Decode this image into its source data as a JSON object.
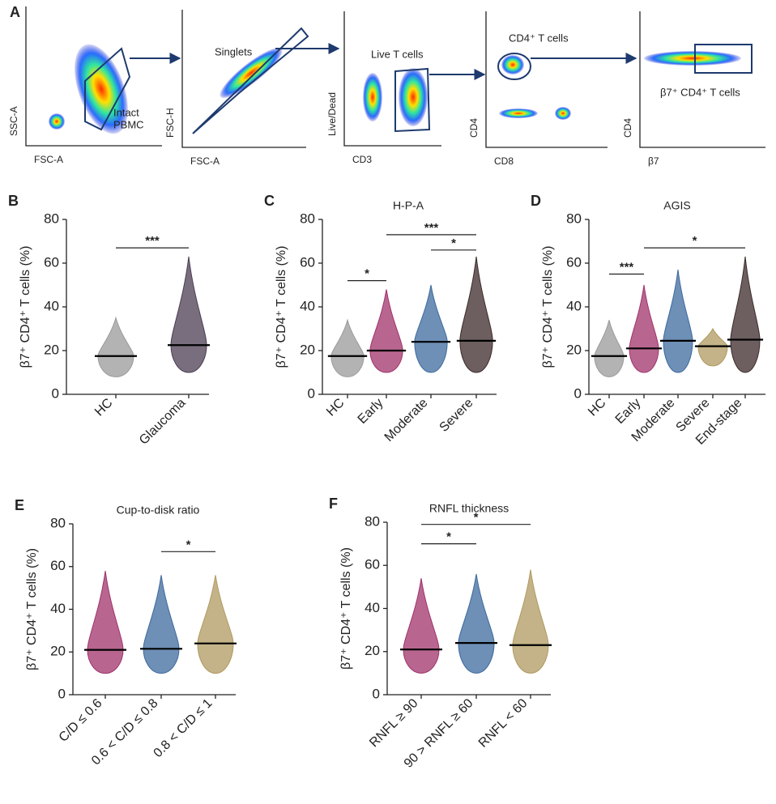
{
  "panel_a": {
    "label": "A",
    "plots": [
      {
        "y_label": "SSC-A",
        "x_label": "FSC-A",
        "gate_label": [
          "Intact",
          "PBMC"
        ]
      },
      {
        "y_label": "FSC-H",
        "x_label": "FSC-A",
        "gate_label": [
          "Singlets"
        ]
      },
      {
        "y_label": "Live/Dead",
        "x_label": "CD3",
        "gate_label": [
          "Live T cells"
        ]
      },
      {
        "y_label": "CD4",
        "x_label": "CD8",
        "gate_label": [
          "CD4⁺ T cells"
        ]
      },
      {
        "y_label": "CD4",
        "x_label": "β7",
        "gate_label": [
          "β7⁺ CD4⁺ T cells"
        ]
      }
    ]
  },
  "chart_data": [
    {
      "type": "dot",
      "panel": "B",
      "ylabel": "β7⁺ CD4⁺ T cells (%)",
      "categories": [
        "HC",
        "Glaucoma"
      ],
      "colors": [
        "#9a9a9a",
        "#4b3d52"
      ],
      "medians": [
        17.5,
        22.5
      ],
      "min": [
        8,
        10
      ],
      "max": [
        35,
        63
      ],
      "ylim": [
        0,
        80
      ],
      "yticks": [
        0,
        20,
        40,
        60,
        80
      ],
      "significance": [
        {
          "text": "***",
          "from": 0,
          "to": 1,
          "level": 67
        }
      ]
    },
    {
      "type": "dot",
      "panel": "C",
      "title": "H-P-A",
      "ylabel": "β7⁺ CD4⁺ T cells (%)",
      "categories": [
        "HC",
        "Early",
        "Moderate",
        "Severe"
      ],
      "colors": [
        "#9a9a9a",
        "#a0336b",
        "#3d6a9e",
        "#3c2a2a"
      ],
      "medians": [
        17.5,
        20,
        24,
        24.5
      ],
      "min": [
        8,
        10,
        10,
        10
      ],
      "max": [
        34,
        48,
        50,
        63
      ],
      "ylim": [
        0,
        80
      ],
      "yticks": [
        0,
        20,
        40,
        60,
        80
      ],
      "significance": [
        {
          "text": "*",
          "from": 0,
          "to": 1,
          "level": 52
        },
        {
          "text": "***",
          "from": 1,
          "to": 3,
          "level": 73
        },
        {
          "text": "*",
          "from": 2,
          "to": 3,
          "level": 66
        }
      ]
    },
    {
      "type": "dot",
      "panel": "D",
      "title": "AGIS",
      "ylabel": "β7⁺ CD4⁺ T cells (%)",
      "categories": [
        "HC",
        "Early",
        "Moderate",
        "Severe",
        "End-stage"
      ],
      "colors": [
        "#9a9a9a",
        "#a0336b",
        "#3d6a9e",
        "#b09a60",
        "#3c2a2a"
      ],
      "medians": [
        17.5,
        21,
        24.5,
        22,
        25
      ],
      "min": [
        8,
        10,
        10,
        13,
        10
      ],
      "max": [
        34,
        50,
        57,
        30,
        63
      ],
      "ylim": [
        0,
        80
      ],
      "yticks": [
        0,
        20,
        40,
        60,
        80
      ],
      "significance": [
        {
          "text": "***",
          "from": 0,
          "to": 1,
          "level": 55
        },
        {
          "text": "*",
          "from": 1,
          "to": 4,
          "level": 67
        }
      ]
    },
    {
      "type": "dot",
      "panel": "E",
      "title": "Cup-to-disk ratio",
      "ylabel": "β7⁺ CD4⁺ T cells (%)",
      "categories": [
        "C/D ≤ 0.6",
        "0.6 < C/D ≤ 0.8",
        "0.8 < C/D ≤ 1"
      ],
      "colors": [
        "#a0336b",
        "#3d6a9e",
        "#b09a60"
      ],
      "medians": [
        21,
        21.5,
        24
      ],
      "min": [
        10,
        10,
        10
      ],
      "max": [
        58,
        56,
        56
      ],
      "ylim": [
        0,
        80
      ],
      "yticks": [
        0,
        20,
        40,
        60,
        80
      ],
      "significance": [
        {
          "text": "*",
          "from": 1,
          "to": 2,
          "level": 67
        }
      ]
    },
    {
      "type": "dot",
      "panel": "F",
      "title": "RNFL thickness",
      "ylabel": "β7⁺ CD4⁺ T cells (%)",
      "categories": [
        "RNFL ≥ 90",
        "90 > RNFL ≥ 60",
        "RNFL < 60"
      ],
      "colors": [
        "#a0336b",
        "#3d6a9e",
        "#b09a60"
      ],
      "medians": [
        21,
        24,
        23
      ],
      "min": [
        10,
        10,
        10
      ],
      "max": [
        54,
        56,
        58
      ],
      "ylim": [
        0,
        80
      ],
      "yticks": [
        0,
        20,
        40,
        60,
        80
      ],
      "significance": [
        {
          "text": "*",
          "from": 0,
          "to": 1,
          "level": 70
        },
        {
          "text": "*",
          "from": 0,
          "to": 2,
          "level": 79
        }
      ]
    }
  ]
}
